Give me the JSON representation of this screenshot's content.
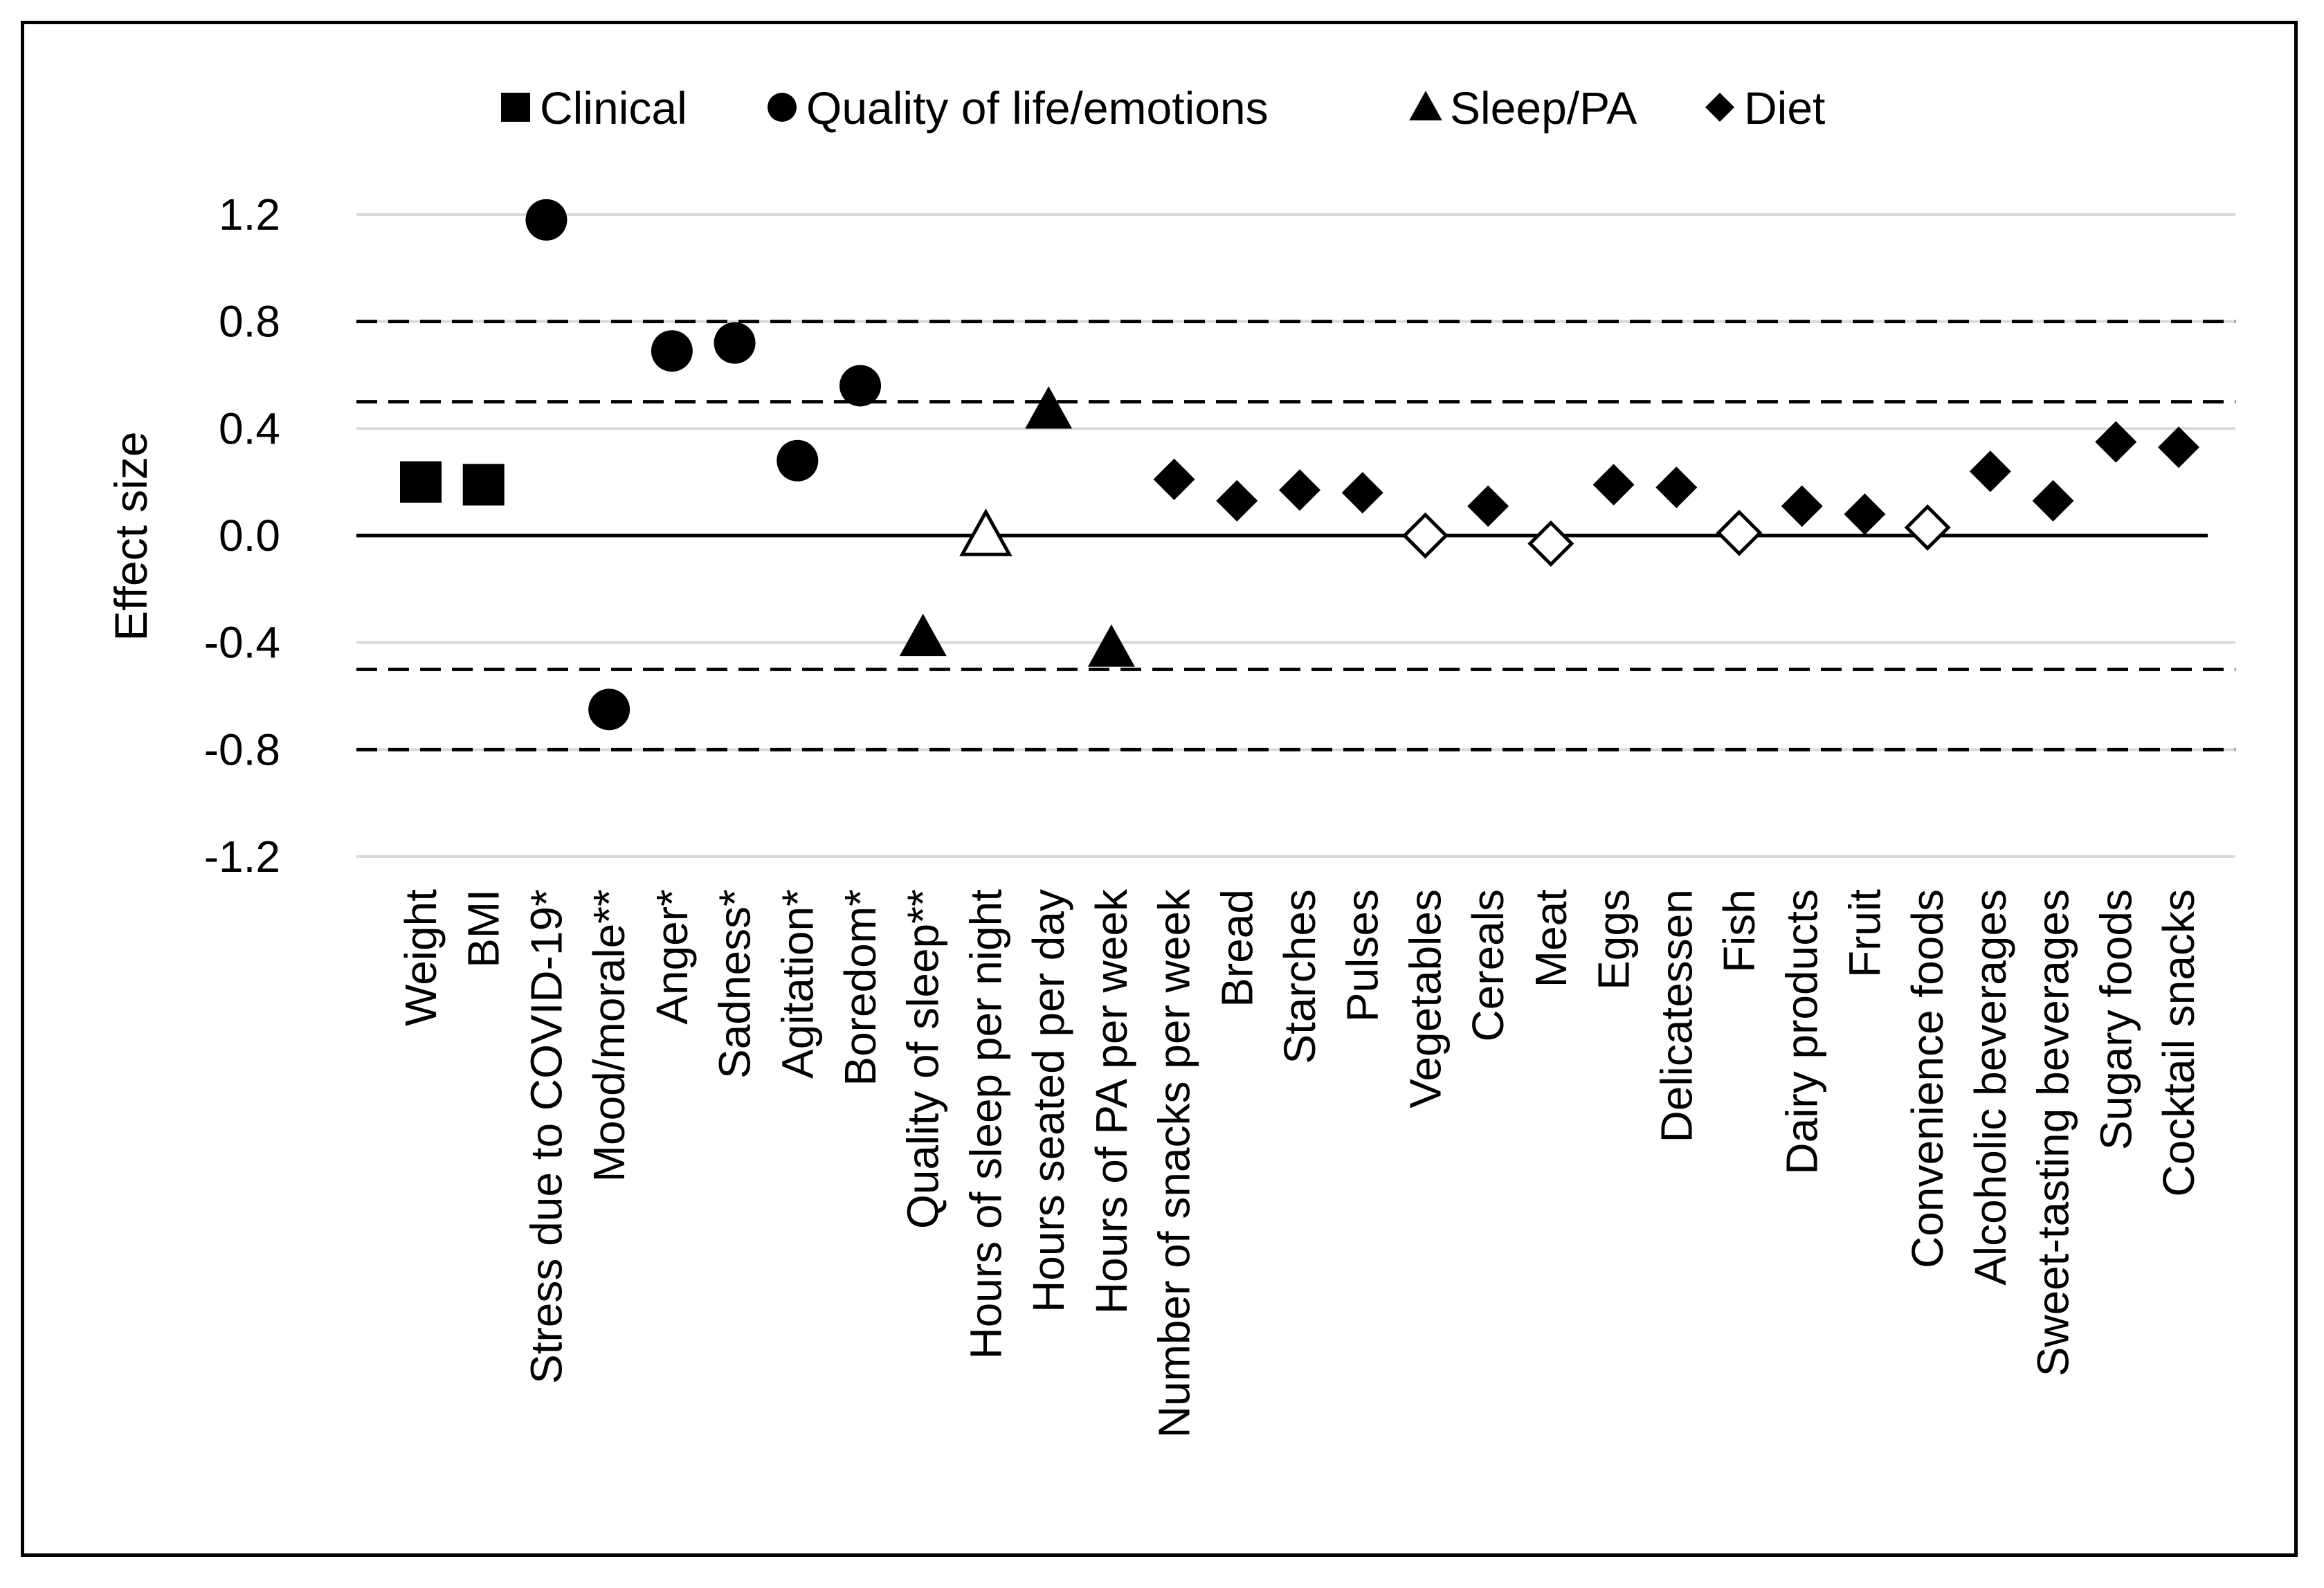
{
  "chart_data": {
    "type": "scatter",
    "title": "",
    "xlabel": "",
    "ylabel": "Effect size",
    "ylim": [
      -1.2,
      1.2
    ],
    "yticks": [
      1.2,
      0.8,
      0.4,
      0.0,
      -0.4,
      -0.8,
      -1.2
    ],
    "ytick_labels": [
      "1.2",
      "0.8",
      "0.4",
      "0.0",
      "-0.4",
      "-0.8",
      "-1.2"
    ],
    "reference_lines": [
      0.8,
      0.5,
      -0.5,
      -0.8
    ],
    "grid": true,
    "legend_position": "top",
    "legend": [
      {
        "name": "Clinical",
        "shape": "square"
      },
      {
        "name": "Quality of life/emotions",
        "shape": "circle"
      },
      {
        "name": "Sleep/PA",
        "shape": "triangle"
      },
      {
        "name": "Diet",
        "shape": "diamond"
      }
    ],
    "points": [
      {
        "label": "Weight",
        "value": 0.2,
        "shape": "square",
        "filled": true
      },
      {
        "label": "BMI",
        "value": 0.19,
        "shape": "square",
        "filled": true
      },
      {
        "label": "Stress due to COVID-19*",
        "value": 1.18,
        "shape": "circle",
        "filled": true
      },
      {
        "label": "Mood/morale**",
        "value": -0.65,
        "shape": "circle",
        "filled": true
      },
      {
        "label": "Anger*",
        "value": 0.69,
        "shape": "circle",
        "filled": true
      },
      {
        "label": "Sadness*",
        "value": 0.72,
        "shape": "circle",
        "filled": true
      },
      {
        "label": "Agitation*",
        "value": 0.28,
        "shape": "circle",
        "filled": true
      },
      {
        "label": "Boredom*",
        "value": 0.56,
        "shape": "circle",
        "filled": true
      },
      {
        "label": "Quality of sleep**",
        "value": -0.38,
        "shape": "triangle",
        "filled": true
      },
      {
        "label": "Hours of sleep per night",
        "value": 0.0,
        "shape": "triangle",
        "filled": false
      },
      {
        "label": "Hours seated per day",
        "value": 0.47,
        "shape": "triangle",
        "filled": true
      },
      {
        "label": "Hours of PA per week",
        "value": -0.42,
        "shape": "triangle",
        "filled": true
      },
      {
        "label": "Number of snacks per week",
        "value": 0.21,
        "shape": "diamond",
        "filled": true
      },
      {
        "label": "Bread",
        "value": 0.13,
        "shape": "diamond",
        "filled": true
      },
      {
        "label": "Starches",
        "value": 0.17,
        "shape": "diamond",
        "filled": true
      },
      {
        "label": "Pulses",
        "value": 0.16,
        "shape": "diamond",
        "filled": true
      },
      {
        "label": "Vegetables",
        "value": 0.0,
        "shape": "diamond",
        "filled": false
      },
      {
        "label": "Cereals",
        "value": 0.11,
        "shape": "diamond",
        "filled": true
      },
      {
        "label": "Meat",
        "value": -0.03,
        "shape": "diamond",
        "filled": false
      },
      {
        "label": "Eggs",
        "value": 0.19,
        "shape": "diamond",
        "filled": true
      },
      {
        "label": "Delicatessen",
        "value": 0.18,
        "shape": "diamond",
        "filled": true
      },
      {
        "label": "Fish",
        "value": 0.01,
        "shape": "diamond",
        "filled": false
      },
      {
        "label": "Dairy products",
        "value": 0.11,
        "shape": "diamond",
        "filled": true
      },
      {
        "label": "Fruit",
        "value": 0.08,
        "shape": "diamond",
        "filled": true
      },
      {
        "label": "Convenience foods",
        "value": 0.03,
        "shape": "diamond",
        "filled": false
      },
      {
        "label": "Alcoholic beverages",
        "value": 0.24,
        "shape": "diamond",
        "filled": true
      },
      {
        "label": "Sweet-tasting beverages",
        "value": 0.13,
        "shape": "diamond",
        "filled": true
      },
      {
        "label": "Sugary foods",
        "value": 0.35,
        "shape": "diamond",
        "filled": true
      },
      {
        "label": "Cocktail snacks",
        "value": 0.33,
        "shape": "diamond",
        "filled": true
      }
    ]
  },
  "colors": {
    "marker": "#000000",
    "gridline": "#d9d9d9",
    "background": "#ffffff"
  }
}
